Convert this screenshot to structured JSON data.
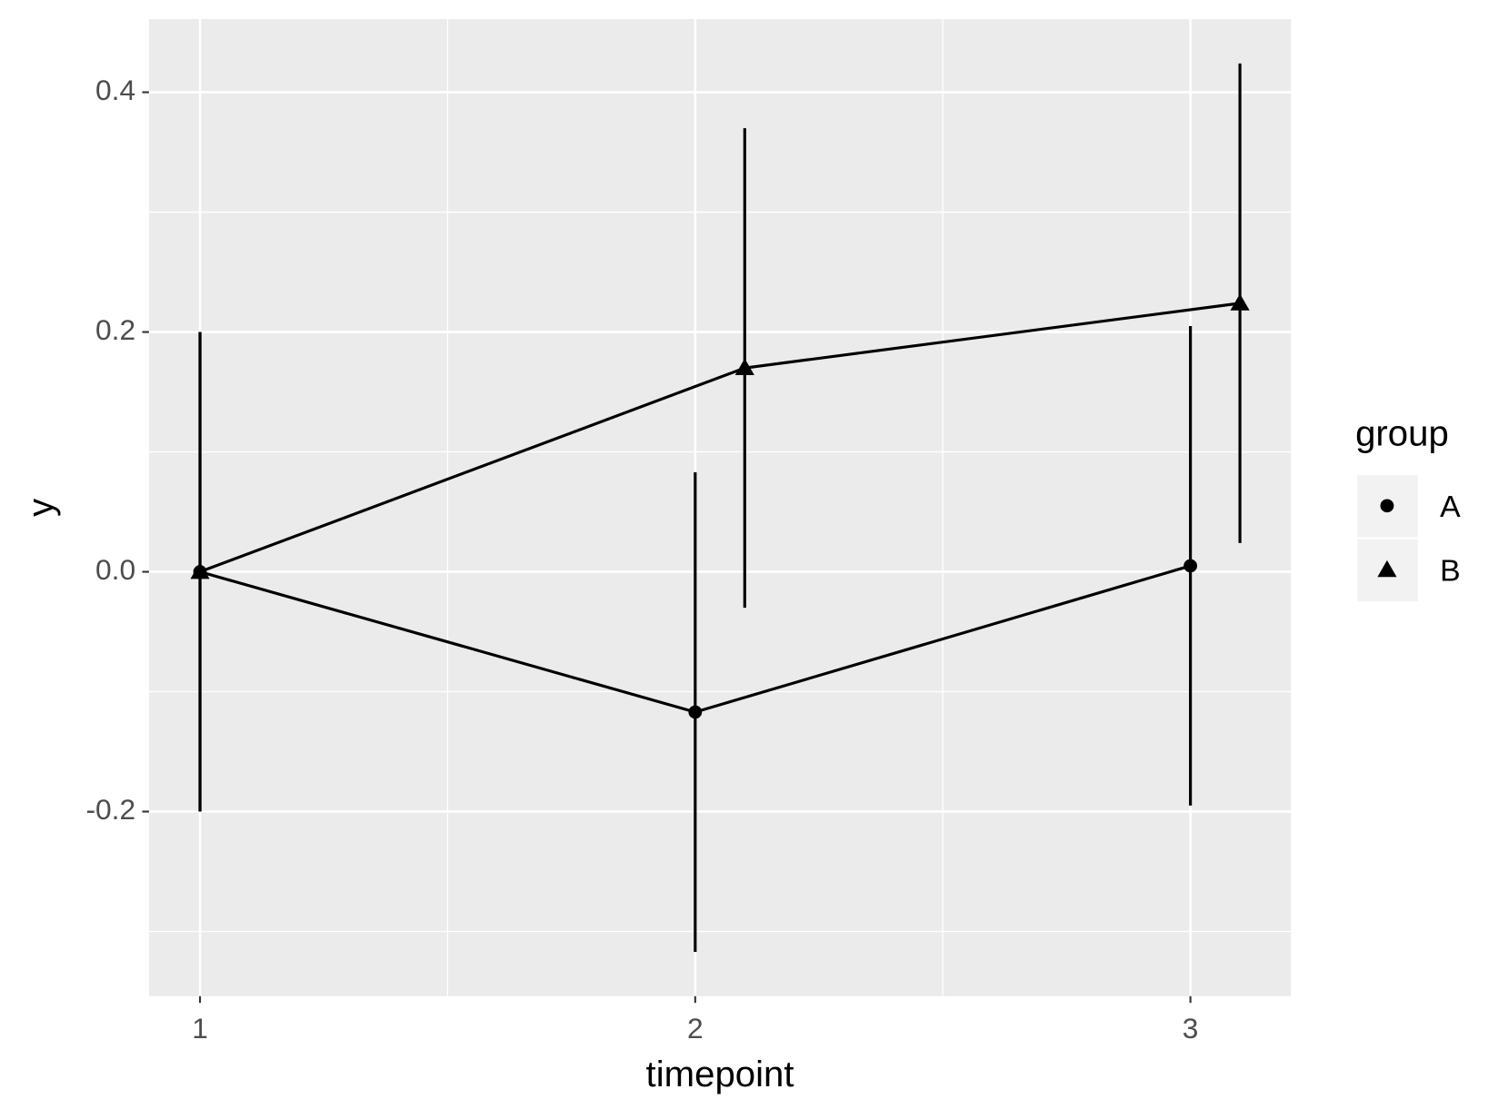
{
  "chart_data": {
    "type": "line",
    "x_label": "timepoint",
    "y_label": "y",
    "series": [
      {
        "name": "A",
        "color": "#000000",
        "marker": "circle",
        "x": [
          1,
          2,
          3
        ],
        "values": [
          0,
          -0.117,
          0.005
        ],
        "errors": [
          0.2,
          0.2,
          0.2
        ]
      },
      {
        "name": "B",
        "color": "#000000",
        "marker": "triangle",
        "x": [
          1,
          2.1,
          3.1
        ],
        "values": [
          0,
          0.17,
          0.224
        ],
        "errors": [
          0.2,
          0.2,
          0.2
        ]
      }
    ],
    "xlim": [
      0.897,
      3.203
    ],
    "xticks": [
      1,
      2,
      3
    ],
    "x_minor_grid": [
      1.5,
      2.5
    ],
    "ylim": [
      -0.354,
      0.461
    ],
    "yticks": [
      -0.2,
      {
        "value": 0,
        "label": "0.0"
      },
      0.2,
      0.4
    ],
    "y_minor_grid": [
      -0.3,
      -0.1,
      0.1,
      0.3
    ],
    "grid": true,
    "legend_title": "group",
    "legend_position": "right"
  }
}
